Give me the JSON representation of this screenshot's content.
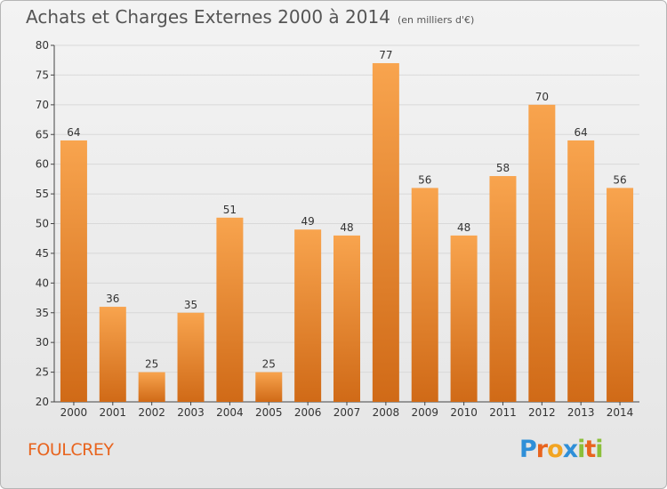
{
  "header": {
    "title": "Achats et Charges Externes 2000 à 2014",
    "subtitle": "(en milliers d'€)"
  },
  "footer": {
    "commune": "FOULCREY",
    "logo_letters": [
      "P",
      "r",
      "o",
      "x",
      "i",
      "t",
      "i"
    ],
    "logo_colors": [
      "#2f8fd8",
      "#e8641e",
      "#f2a421",
      "#2f8fd8",
      "#8bbf3a",
      "#e8641e",
      "#8bbf3a"
    ]
  },
  "colors": {
    "bar_top": "#f8a44e",
    "bar_bottom": "#d06a17"
  },
  "chart_data": {
    "type": "bar",
    "title": "Achats et Charges Externes 2000 à 2014",
    "subtitle": "(en milliers d'€)",
    "categories": [
      "2000",
      "2001",
      "2002",
      "2003",
      "2004",
      "2005",
      "2006",
      "2007",
      "2008",
      "2009",
      "2010",
      "2011",
      "2012",
      "2013",
      "2014"
    ],
    "values": [
      64,
      36,
      25,
      35,
      51,
      25,
      49,
      48,
      77,
      56,
      48,
      58,
      70,
      64,
      56
    ],
    "ylim": [
      20,
      80
    ],
    "yticks": [
      20,
      25,
      30,
      35,
      40,
      45,
      50,
      55,
      60,
      65,
      70,
      75,
      80
    ],
    "grid": true,
    "legend": "none"
  }
}
